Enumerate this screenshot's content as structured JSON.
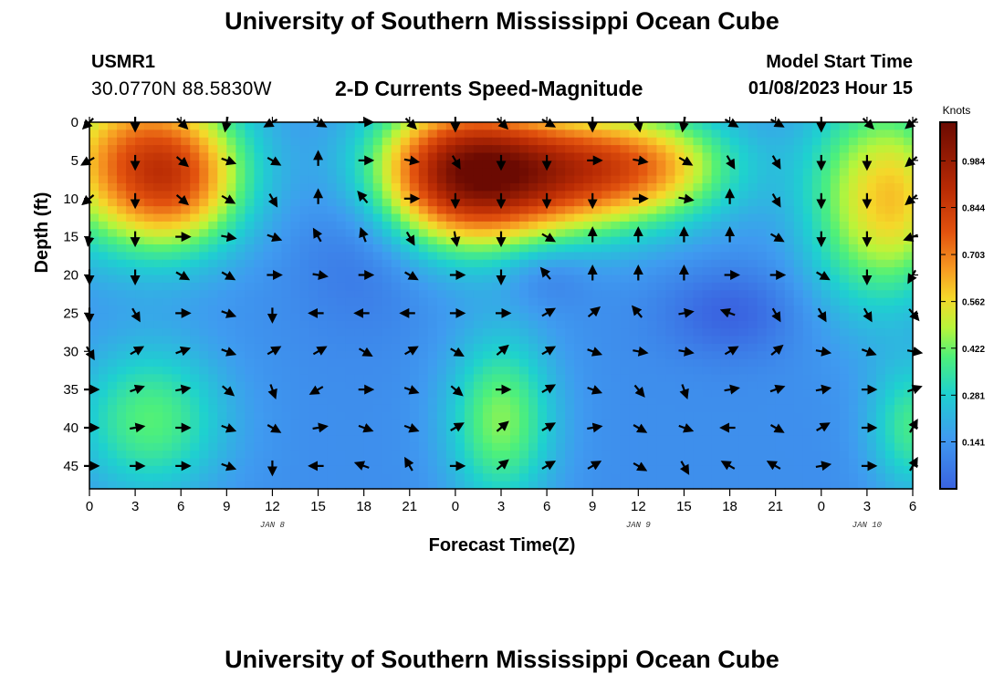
{
  "header": {
    "title": "University of Southern Mississippi Ocean Cube",
    "station_id": "USMR1",
    "coordinates": "30.0770N  88.5830W",
    "subtitle": "2-D Currents Speed-Magnitude",
    "model_start_label": "Model Start Time",
    "model_start_value": "01/08/2023 Hour 15"
  },
  "footer": {
    "title": "University of Southern Mississippi Ocean Cube"
  },
  "chart_data": {
    "type": "heatmap",
    "title": "2-D Currents Speed-Magnitude",
    "xlabel": "Forecast Time(Z)",
    "ylabel": "Depth (ft)",
    "colorbar_label": "Knots",
    "colorbar_ticks": [
      0.984,
      0.844,
      0.703,
      0.562,
      0.422,
      0.281,
      0.141
    ],
    "colorbar_range": [
      0.0,
      1.1
    ],
    "x_tick_labels": [
      "0",
      "3",
      "6",
      "9",
      "12",
      "15",
      "18",
      "21",
      "0",
      "3",
      "6",
      "9",
      "12",
      "15",
      "18",
      "21",
      "0",
      "3",
      "6"
    ],
    "x_date_labels": [
      {
        "label": "JAN 8",
        "at_tick": 4
      },
      {
        "label": "JAN 9",
        "at_tick": 12
      },
      {
        "label": "JAN 10",
        "at_tick": 17
      }
    ],
    "y_tick_labels": [
      "0",
      "5",
      "10",
      "15",
      "20",
      "25",
      "30",
      "35",
      "40",
      "45"
    ],
    "depth_range_ft": [
      0,
      48
    ],
    "hours_range": [
      0,
      54
    ],
    "speed_blobs": [
      {
        "h": 3,
        "d": 5,
        "v": 0.55,
        "sh": 4.5,
        "sd": 8
      },
      {
        "h": 6,
        "d": 8,
        "v": 0.3,
        "sh": 3,
        "sd": 6
      },
      {
        "h": 24,
        "d": 6,
        "v": 0.5,
        "sh": 4,
        "sd": 7
      },
      {
        "h": 28,
        "d": 8,
        "v": 0.45,
        "sh": 6,
        "sd": 6
      },
      {
        "h": 32,
        "d": 5,
        "v": 0.3,
        "sh": 6,
        "sd": 5
      },
      {
        "h": 37,
        "d": 6,
        "v": 0.25,
        "sh": 4,
        "sd": 5
      },
      {
        "h": 51,
        "d": 10,
        "v": 0.38,
        "sh": 3,
        "sd": 10
      },
      {
        "h": 54,
        "d": 10,
        "v": 0.2,
        "sh": 2,
        "sd": 8
      },
      {
        "h": 4,
        "d": 39,
        "v": 0.28,
        "sh": 3.5,
        "sd": 7
      },
      {
        "h": 27,
        "d": 39,
        "v": 0.32,
        "sh": 2.5,
        "sd": 8
      },
      {
        "h": 54,
        "d": 40,
        "v": 0.25,
        "sh": 2,
        "sd": 6
      },
      {
        "h": 18,
        "d": 14,
        "v": -0.1,
        "sh": 3,
        "sd": 8
      },
      {
        "h": 42,
        "d": 25,
        "v": -0.12,
        "sh": 3,
        "sd": 4
      },
      {
        "h": 30,
        "d": 20,
        "v": -0.08,
        "sh": 2,
        "sd": 3
      }
    ],
    "speed_base": 0.12,
    "vector_rows_ft": [
      0,
      5,
      10,
      15,
      20,
      25,
      30,
      35,
      40,
      45
    ],
    "vector_angles_deg": [
      [
        135,
        90,
        45,
        100,
        150,
        30,
        0,
        45,
        90,
        45,
        30,
        90,
        80,
        100,
        30,
        30,
        90,
        45,
        140
      ],
      [
        150,
        90,
        40,
        20,
        30,
        270,
        0,
        10,
        60,
        90,
        90,
        0,
        10,
        30,
        60,
        60,
        90,
        90,
        140
      ],
      [
        140,
        90,
        40,
        30,
        60,
        270,
        230,
        0,
        90,
        90,
        90,
        90,
        0,
        10,
        270,
        60,
        90,
        90,
        140
      ],
      [
        100,
        90,
        0,
        10,
        20,
        240,
        250,
        60,
        80,
        90,
        30,
        270,
        270,
        270,
        270,
        30,
        90,
        90,
        160
      ],
      [
        90,
        90,
        30,
        30,
        0,
        10,
        0,
        30,
        0,
        90,
        230,
        270,
        270,
        270,
        0,
        0,
        30,
        90,
        120
      ],
      [
        90,
        60,
        0,
        20,
        90,
        180,
        180,
        180,
        0,
        0,
        330,
        320,
        230,
        350,
        200,
        60,
        60,
        60,
        50
      ],
      [
        60,
        330,
        340,
        20,
        330,
        330,
        30,
        330,
        30,
        320,
        330,
        20,
        10,
        10,
        330,
        320,
        10,
        20,
        10
      ],
      [
        0,
        340,
        350,
        40,
        70,
        150,
        0,
        20,
        40,
        0,
        330,
        20,
        50,
        70,
        350,
        340,
        350,
        0,
        340
      ],
      [
        0,
        350,
        0,
        20,
        30,
        350,
        20,
        20,
        330,
        320,
        330,
        350,
        30,
        20,
        180,
        30,
        330,
        0,
        300
      ],
      [
        0,
        0,
        0,
        20,
        90,
        180,
        200,
        240,
        0,
        320,
        330,
        330,
        30,
        60,
        210,
        210,
        350,
        0,
        300
      ]
    ]
  }
}
